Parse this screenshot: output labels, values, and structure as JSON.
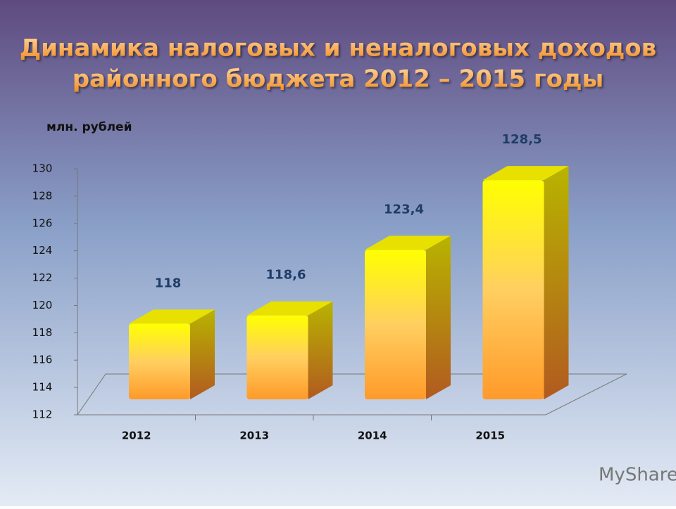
{
  "chart_data": {
    "type": "bar3d",
    "title": [
      "Динамика налоговых и неналоговых доходов",
      "районного бюджета 2012 – 2015 годы"
    ],
    "y_label": "млн. рублей",
    "categories": [
      "2012",
      "2013",
      "2014",
      "2015"
    ],
    "values": [
      118,
      118.6,
      123.4,
      128.5
    ],
    "value_labels": [
      "118",
      "118,6",
      "123,4",
      "128,5"
    ],
    "ylim": [
      112,
      130
    ],
    "yticks": [
      112,
      114,
      116,
      118,
      120,
      122,
      124,
      126,
      128,
      130
    ],
    "color": "#ffff00",
    "watermark": "MyShared"
  }
}
